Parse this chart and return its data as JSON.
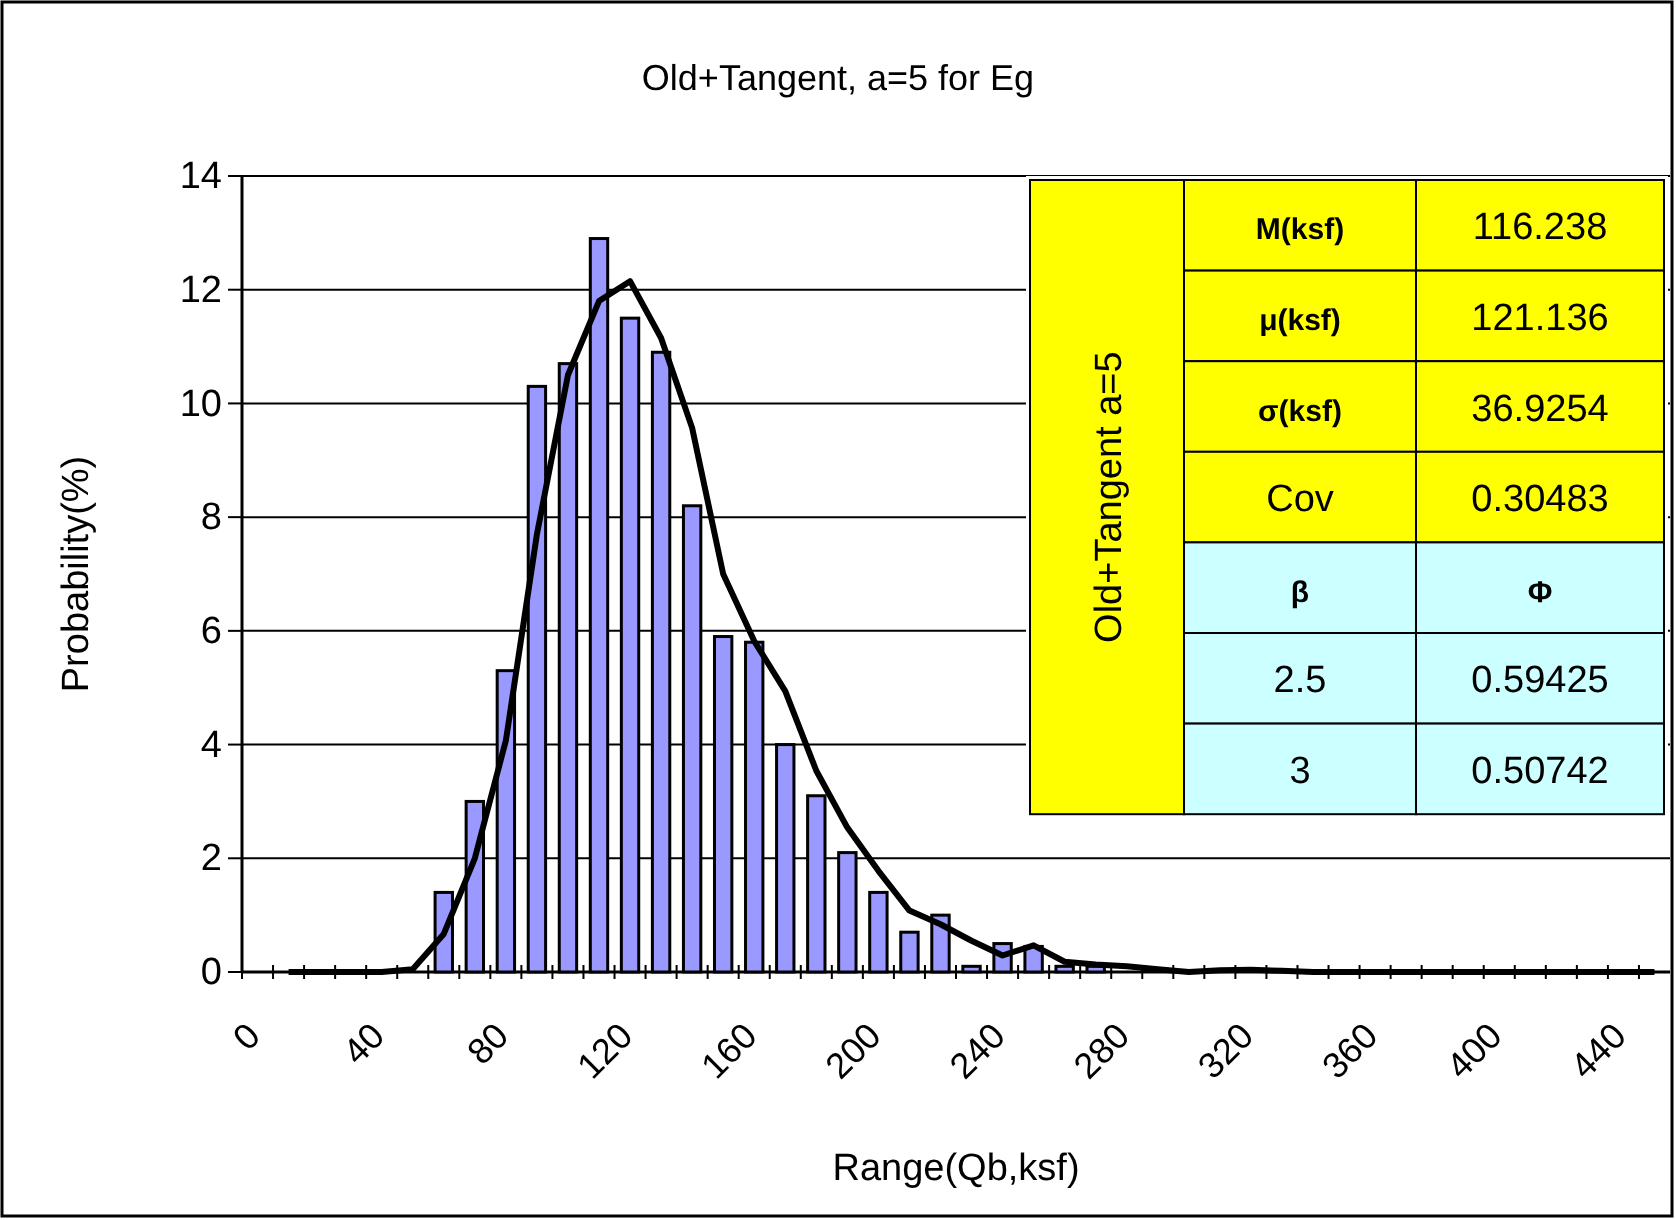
{
  "chart_data": {
    "type": "bar",
    "title": "Old+Tangent, a=5 for Eg",
    "xlabel": "Range(Qb,ksf)",
    "ylabel": "Probability(%)",
    "x": [
      65,
      75,
      85,
      95,
      105,
      115,
      125,
      135,
      145,
      155,
      165,
      175,
      185,
      195,
      205,
      215,
      225,
      235,
      245,
      255,
      265,
      275
    ],
    "series": [
      {
        "color": "#9999ff",
        "values": [
          1.4,
          3.0,
          5.3,
          10.3,
          10.7,
          12.9,
          11.5,
          10.9,
          8.2,
          5.9,
          5.8,
          4.0,
          3.1,
          2.1,
          1.4,
          0.7,
          1.0,
          0.1,
          0.5,
          0.45,
          0.1,
          0.1
        ]
      },
      {
        "type": "line",
        "color": "#000000",
        "x": [
          15,
          25,
          35,
          45,
          55,
          65,
          75,
          85,
          95,
          105,
          115,
          125,
          135,
          145,
          155,
          165,
          175,
          185,
          195,
          205,
          215,
          225,
          235,
          245,
          255,
          265,
          275,
          285,
          295,
          305,
          315,
          325,
          335,
          345,
          355,
          365,
          375,
          385,
          395,
          405,
          415,
          425,
          435,
          445,
          455
        ],
        "values": [
          0,
          0,
          0,
          0,
          0.05,
          0.67,
          2.0,
          4.07,
          7.7,
          10.5,
          11.8,
          12.15,
          11.15,
          9.57,
          7.0,
          5.82,
          4.94,
          3.54,
          2.54,
          1.78,
          1.08,
          0.84,
          0.55,
          0.29,
          0.47,
          0.18,
          0.13,
          0.1,
          0.05,
          0,
          0.03,
          0.04,
          0.02,
          0,
          0,
          0,
          0,
          0,
          0,
          0,
          0,
          0,
          0,
          0,
          0
        ]
      }
    ],
    "xlim": [
      0,
      460
    ],
    "xticks": [
      0,
      {
        "value": 10,
        "label": null
      },
      {
        "value": 20,
        "label": null
      },
      {
        "value": 30,
        "label": null
      },
      40,
      {
        "value": 50,
        "label": null
      },
      {
        "value": 60,
        "label": null
      },
      {
        "value": 70,
        "label": null
      },
      80,
      {
        "value": 90,
        "label": null
      },
      {
        "value": 100,
        "label": null
      },
      {
        "value": 110,
        "label": null
      },
      120,
      {
        "value": 130,
        "label": null
      },
      {
        "value": 140,
        "label": null
      },
      {
        "value": 150,
        "label": null
      },
      160,
      {
        "value": 170,
        "label": null
      },
      {
        "value": 180,
        "label": null
      },
      {
        "value": 190,
        "label": null
      },
      200,
      {
        "value": 210,
        "label": null
      },
      {
        "value": 220,
        "label": null
      },
      {
        "value": 230,
        "label": null
      },
      240,
      {
        "value": 250,
        "label": null
      },
      {
        "value": 260,
        "label": null
      },
      {
        "value": 270,
        "label": null
      },
      280,
      {
        "value": 290,
        "label": null
      },
      {
        "value": 300,
        "label": null
      },
      {
        "value": 310,
        "label": null
      },
      320,
      {
        "value": 330,
        "label": null
      },
      {
        "value": 340,
        "label": null
      },
      {
        "value": 350,
        "label": null
      },
      360,
      {
        "value": 370,
        "label": null
      },
      {
        "value": 380,
        "label": null
      },
      {
        "value": 390,
        "label": null
      },
      400,
      {
        "value": 410,
        "label": null
      },
      {
        "value": 420,
        "label": null
      },
      {
        "value": 430,
        "label": null
      },
      440,
      {
        "value": 450,
        "label": null
      }
    ],
    "ylim": [
      0,
      14
    ],
    "yticks": [
      0,
      2,
      4,
      6,
      8,
      10,
      12,
      14
    ],
    "grid": "y",
    "marker": "none",
    "line_style": "solid",
    "annotations": [
      "Old+Tangent a=5",
      "M(ksf)",
      "116.238",
      "μ(ksf)",
      "121.136",
      "σ(ksf)",
      "36.9254",
      "Cov",
      "0.30483",
      "β",
      "Φ",
      "2.5",
      "0.59425",
      "3",
      "0.50742"
    ]
  }
}
